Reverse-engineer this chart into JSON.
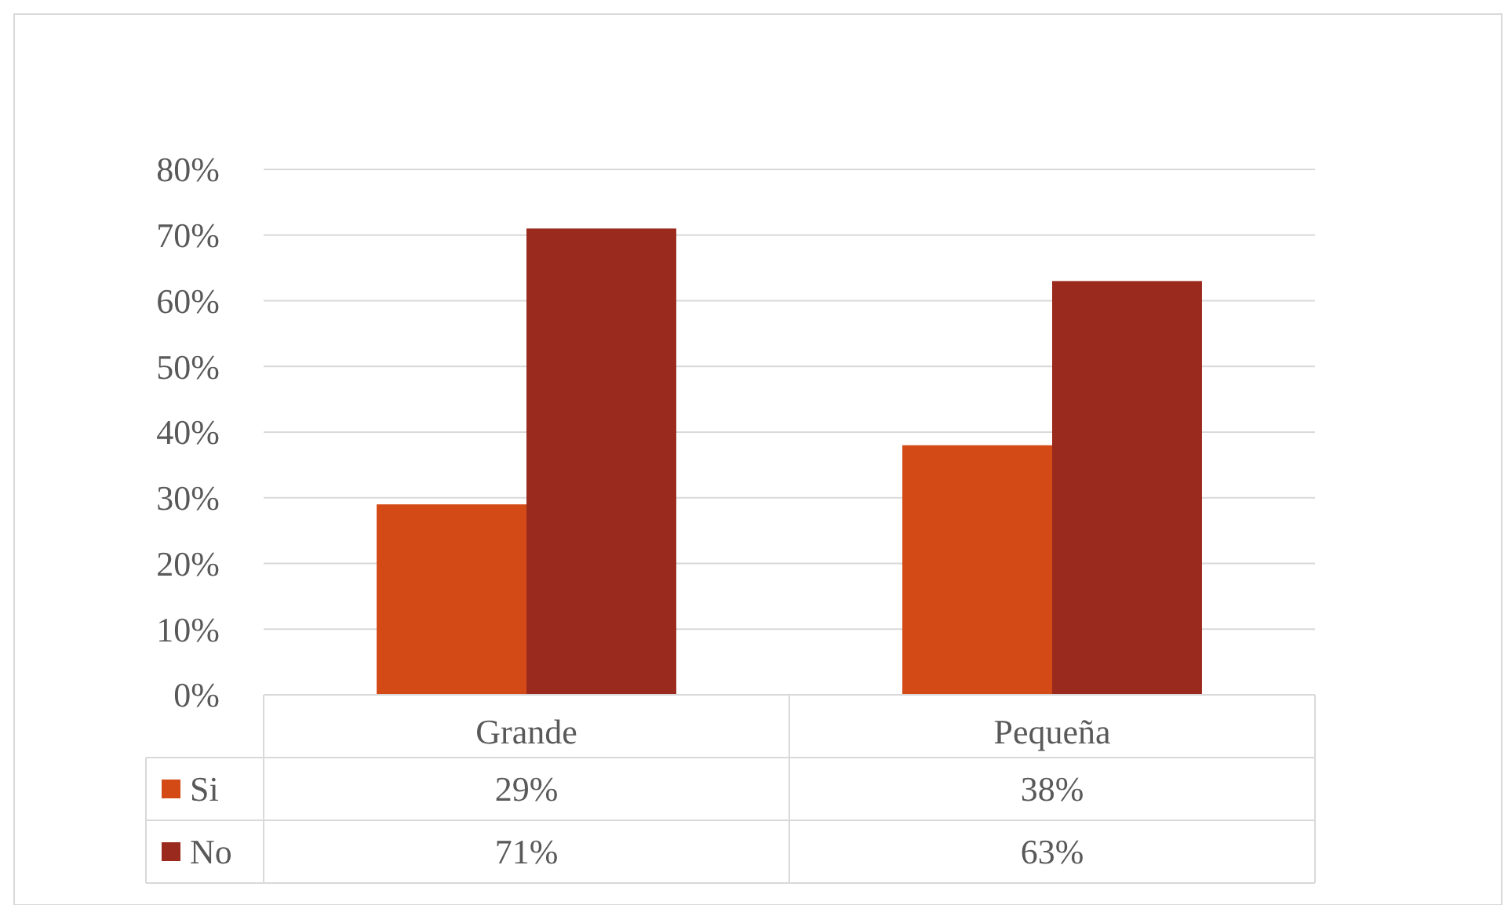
{
  "chart_data": {
    "type": "bar",
    "categories": [
      "Grande",
      "Pequeña"
    ],
    "series": [
      {
        "name": "Si",
        "color": "#d44a17",
        "values": [
          29,
          38
        ],
        "value_labels": [
          "29%",
          "38%"
        ]
      },
      {
        "name": "No",
        "color": "#9b2a1e",
        "values": [
          71,
          63
        ],
        "value_labels": [
          "71%",
          "63%"
        ]
      }
    ],
    "ylim": [
      0,
      80
    ],
    "yticks": [
      {
        "value": 0,
        "label": "0%"
      },
      {
        "value": 10,
        "label": "10%"
      },
      {
        "value": 20,
        "label": "20%"
      },
      {
        "value": 30,
        "label": "30%"
      },
      {
        "value": 40,
        "label": "40%"
      },
      {
        "value": 50,
        "label": "50%"
      },
      {
        "value": 60,
        "label": "60%"
      },
      {
        "value": 70,
        "label": "70%"
      },
      {
        "value": 80,
        "label": "80%"
      }
    ],
    "grid": "y",
    "legend": "bottom"
  }
}
